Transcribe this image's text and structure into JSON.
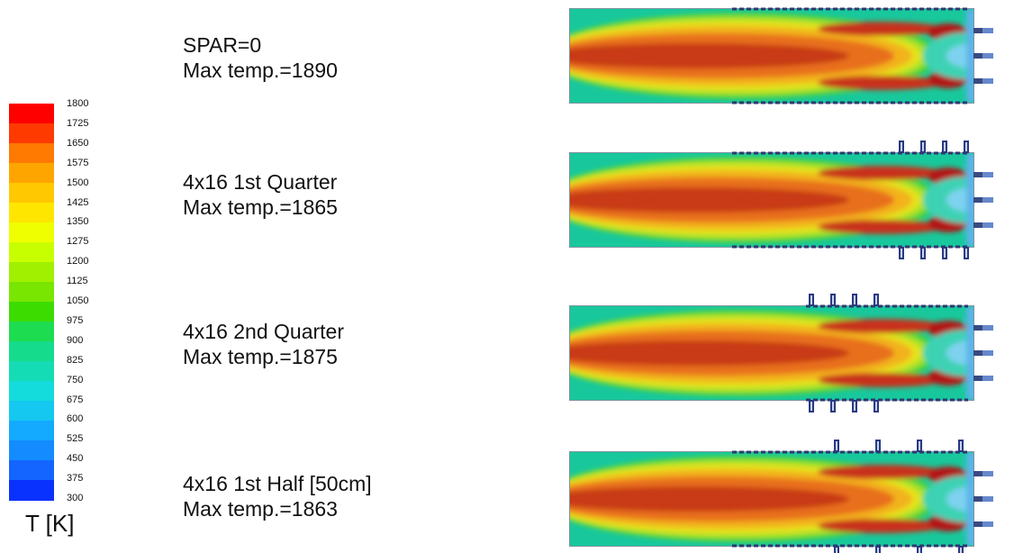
{
  "legend": {
    "title": "T [K]",
    "ticks": [
      "1800",
      "1725",
      "1650",
      "1575",
      "1500",
      "1425",
      "1350",
      "1275",
      "1200",
      "1125",
      "1050",
      "975",
      "900",
      "825",
      "750",
      "675",
      "600",
      "525",
      "450",
      "375",
      "300"
    ],
    "colors": [
      "#ff0000",
      "#ff3a00",
      "#ff7a00",
      "#ffa500",
      "#ffc800",
      "#ffe600",
      "#f0ff00",
      "#c8ff00",
      "#a0f000",
      "#78e600",
      "#3cdc00",
      "#1edc50",
      "#14dc8c",
      "#14dcb4",
      "#14dcdc",
      "#14c8f0",
      "#14aaff",
      "#148cff",
      "#1464ff",
      "#0a32ff"
    ]
  },
  "cases": [
    {
      "name": "SPAR=0",
      "max": "Max temp.=1890"
    },
    {
      "name": "4x16 1st Quarter",
      "max": "Max temp.=1865"
    },
    {
      "name": "4x16 2nd Quarter",
      "max": "Max temp.=1875"
    },
    {
      "name": "4x16 1st Half [50cm]",
      "max": "Max temp.=1863"
    }
  ]
}
